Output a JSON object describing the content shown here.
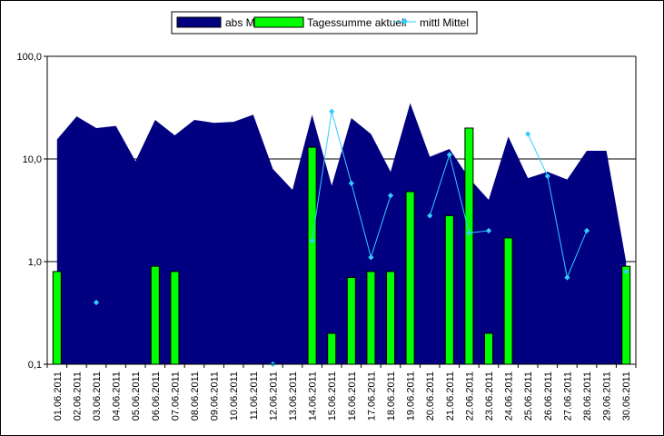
{
  "chart_data": {
    "type": "bar",
    "scale": "log",
    "ylim": [
      0.1,
      100
    ],
    "grid": "horizontal major gridlines at 0,1 / 1,0 / 10,0 / 100,0",
    "legend_position": "top",
    "y_ticks": [
      "0,1",
      "1,0",
      "10,0",
      "100,0"
    ],
    "y_tick_values": [
      0.1,
      1,
      10,
      100
    ],
    "categories": [
      "01.06.2011",
      "02.06.2011",
      "03.06.2011",
      "04.06.2011",
      "05.06.2011",
      "06.06.2011",
      "07.06.2011",
      "08.06.2011",
      "09.06.2011",
      "10.06.2011",
      "11.06.2011",
      "12.06.2011",
      "13.06.2011",
      "14.06.2011",
      "15.06.2011",
      "16.06.2011",
      "17.06.2011",
      "18.06.2011",
      "19.06.2011",
      "20.06.2011",
      "21.06.2011",
      "22.06.2011",
      "23.06.2011",
      "24.06.2011",
      "25.06.2011",
      "26.06.2011",
      "27.06.2011",
      "28.06.2011",
      "29.06.2011",
      "30.06.2011"
    ],
    "x_tick_labels": [
      "01.06.2011",
      "02.06.2011",
      "03.06.2011",
      "04.06.2011",
      "05.06.2011",
      "06.06.2011",
      "07.06.2011",
      "08.06.2011",
      "09.06.2011",
      "10.06.2011",
      "11.06.2011",
      "12.06.2011",
      "13.06.2011",
      "14.06.2011",
      "15.06.2011",
      "16.06.2011",
      "17.06.2011",
      "18.06.2011",
      "19.06.2011",
      "20.06.2011",
      "21.06.2011",
      "22.06.2011",
      "23.06.2011",
      "24.06.2011",
      "25.06.2011",
      "26.06.2011",
      "27.06.2011",
      "28.06.2011",
      "29.06.2011",
      "30.06.2011"
    ],
    "series": [
      {
        "name": "abs Max",
        "kind": "area",
        "color": "#000080",
        "values": [
          15.5,
          26,
          20,
          21,
          9.5,
          24,
          17,
          24,
          22.5,
          23,
          27,
          8,
          5,
          27,
          5.5,
          25,
          17.5,
          7.5,
          35,
          10.5,
          12.5,
          6.5,
          4,
          16.5,
          6.5,
          7.5,
          6.3,
          12,
          12,
          1
        ]
      },
      {
        "name": "Tagessumme aktuell",
        "kind": "bar",
        "color": "#00ff00",
        "values": [
          0.8,
          null,
          null,
          null,
          null,
          0.9,
          0.8,
          null,
          null,
          null,
          null,
          null,
          null,
          13,
          0.2,
          0.7,
          0.8,
          0.8,
          4.8,
          null,
          2.8,
          20,
          0.2,
          1.7,
          null,
          null,
          null,
          null,
          null,
          0.9
        ]
      },
      {
        "name": "mittl Mittel",
        "kind": "line",
        "color": "#33ccff",
        "values": [
          null,
          null,
          0.4,
          null,
          null,
          null,
          null,
          null,
          null,
          null,
          null,
          0.1,
          null,
          1.6,
          29,
          5.8,
          1.1,
          4.4,
          null,
          2.8,
          11,
          1.9,
          2.0,
          null,
          17.5,
          6.8,
          0.7,
          2.0,
          null,
          0.8
        ]
      }
    ]
  }
}
